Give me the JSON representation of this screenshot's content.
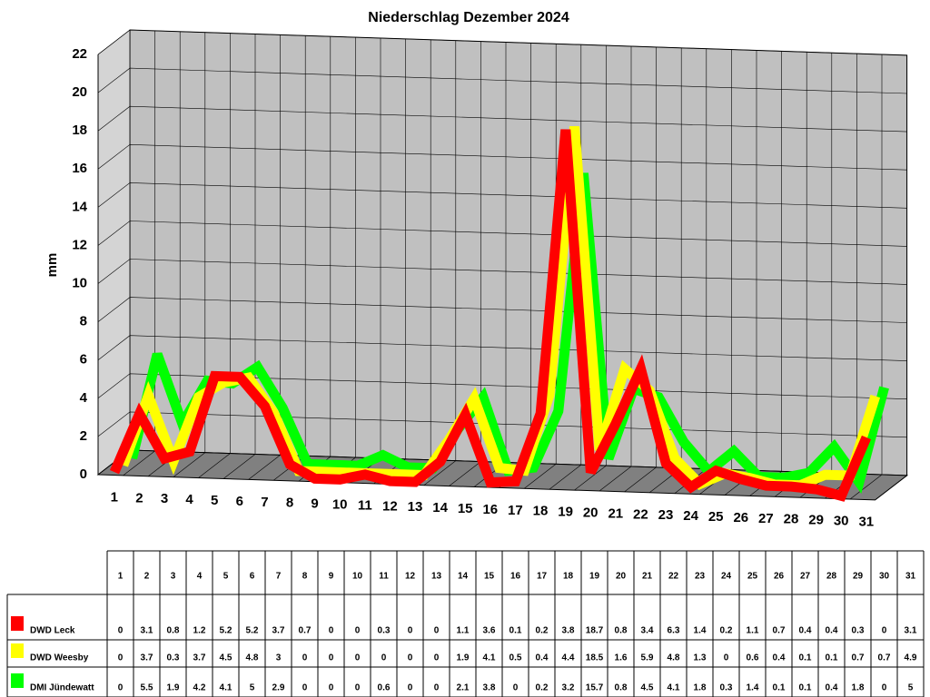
{
  "chart_data": {
    "type": "line3d",
    "title": "Niederschlag Dezember 2024",
    "y_label": "mm",
    "categories": [
      "1",
      "2",
      "3",
      "4",
      "5",
      "6",
      "7",
      "8",
      "9",
      "10",
      "11",
      "12",
      "13",
      "14",
      "15",
      "16",
      "17",
      "18",
      "19",
      "20",
      "21",
      "22",
      "23",
      "24",
      "25",
      "26",
      "27",
      "28",
      "29",
      "30",
      "31"
    ],
    "ylim": [
      0,
      22
    ],
    "yticks": [
      0,
      2,
      4,
      6,
      8,
      10,
      12,
      14,
      16,
      18,
      20,
      22
    ],
    "grid": true,
    "series": [
      {
        "name": "DWD Leck",
        "color": "#ff0000",
        "values": [
          0,
          3.1,
          0.8,
          1.2,
          5.2,
          5.2,
          3.7,
          0.7,
          0,
          0,
          0.3,
          0,
          0,
          1.1,
          3.6,
          0.1,
          0.2,
          3.8,
          18.7,
          0.8,
          3.4,
          6.3,
          1.4,
          0.2,
          1.1,
          0.7,
          0.4,
          0.4,
          0.3,
          0,
          3.1
        ]
      },
      {
        "name": "DWD Weesby",
        "color": "#ffff00",
        "values": [
          0,
          3.7,
          0.3,
          3.7,
          4.5,
          4.8,
          3,
          0,
          0,
          0,
          0,
          0,
          0,
          1.9,
          4.1,
          0.5,
          0.4,
          4.4,
          18.5,
          1.6,
          5.9,
          4.8,
          1.3,
          0,
          0.6,
          0.4,
          0.1,
          0.1,
          0.7,
          0.7,
          4.9
        ]
      },
      {
        "name": "DMI Jündewatt",
        "color": "#00ff00",
        "values": [
          0,
          5.5,
          1.9,
          4.2,
          4.1,
          5,
          2.9,
          0,
          0,
          0,
          0.6,
          0,
          0,
          2.1,
          3.8,
          0,
          0.2,
          3.2,
          15.7,
          0.8,
          4.5,
          4.1,
          1.8,
          0.3,
          1.4,
          0.1,
          0.1,
          0.4,
          1.8,
          0,
          5
        ]
      }
    ]
  }
}
